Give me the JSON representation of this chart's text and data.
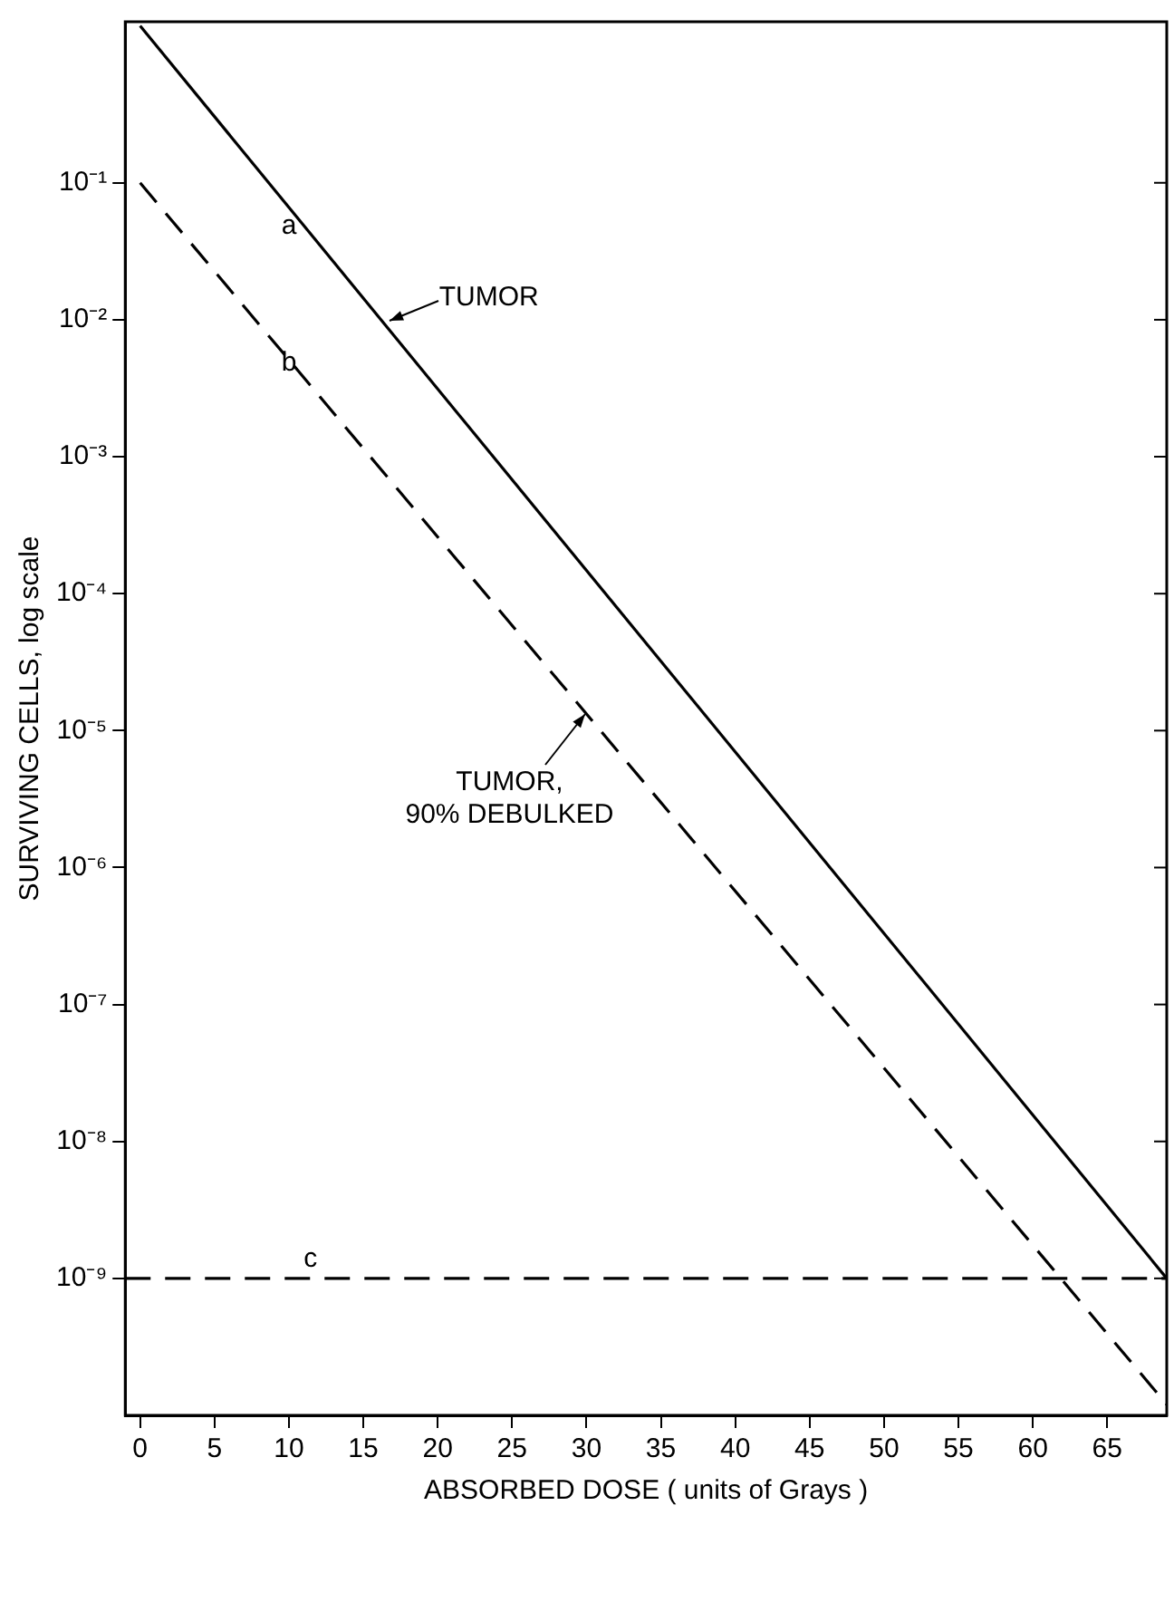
{
  "chart_data": {
    "type": "line",
    "xlabel": "ABSORBED DOSE ( units of Grays )",
    "ylabel": "SURVIVING CELLS, log scale",
    "log": "y",
    "x": [
      0,
      69
    ],
    "series": [
      {
        "color": "#000000",
        "values": [
          1.4,
          1e-09
        ],
        "line_style": "solid"
      },
      {
        "color": "#000000",
        "values": [
          0.1,
          1.2e-10
        ],
        "line_style": "dashed"
      }
    ],
    "xlim": [
      -1,
      69
    ],
    "xticks": [
      0,
      5,
      10,
      15,
      20,
      25,
      30,
      35,
      40,
      45,
      50,
      55,
      60,
      65
    ],
    "ylim": [
      1e-10,
      1.5
    ],
    "yticks": [
      {
        "value": 0.1,
        "label": "10⁻¹"
      },
      {
        "value": 0.01,
        "label": "10⁻²"
      },
      {
        "value": 0.001,
        "label": "10⁻³"
      },
      {
        "value": 0.0001,
        "label": "10⁻⁴"
      },
      {
        "value": 1e-05,
        "label": "10⁻⁵"
      },
      {
        "value": 1e-06,
        "label": "10⁻⁶"
      },
      {
        "value": 1e-07,
        "label": "10⁻⁷"
      },
      {
        "value": 1e-08,
        "label": "10⁻⁸"
      },
      {
        "value": 1e-09,
        "label": "10⁻⁹"
      }
    ],
    "ref_lines": [
      {
        "axis": "y",
        "value": 1e-09,
        "label": "c",
        "line_style": "dashed",
        "color": "#000000"
      }
    ],
    "annotations": [
      {
        "text": "a",
        "x": 11,
        "y": 0.04
      },
      {
        "text": "b",
        "x": 11,
        "y": 0.004
      },
      {
        "text": "TUMOR",
        "x": 16.2,
        "y": 0.01
      },
      {
        "text": "TUMOR, 90% DEBULKED",
        "x": 29.7,
        "y": 1.5e-05
      }
    ],
    "grid": false,
    "legend": false,
    "marker": "none"
  }
}
